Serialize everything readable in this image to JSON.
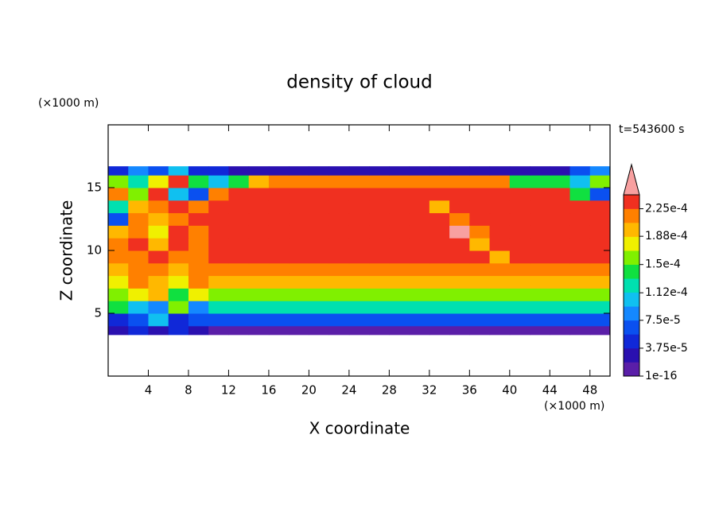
{
  "chart_data": {
    "type": "heatmap",
    "title": "density of cloud",
    "xlabel": "X coordinate",
    "ylabel": "Z coordinate",
    "xunit": "(×1000 m)",
    "yunit": "(×1000 m)",
    "annotation": "t=543600 s",
    "xlim": [
      0,
      50
    ],
    "ylim": [
      0,
      20
    ],
    "xticks": [
      4,
      8,
      12,
      16,
      20,
      24,
      28,
      32,
      36,
      40,
      44,
      48
    ],
    "yticks": [
      5,
      10,
      15
    ],
    "x_edges": [
      0,
      2,
      4,
      6,
      8,
      10,
      12,
      14,
      16,
      18,
      20,
      22,
      24,
      26,
      28,
      30,
      32,
      34,
      36,
      38,
      40,
      42,
      44,
      46,
      48,
      50
    ],
    "z_edges": [
      3.3,
      4,
      5,
      6,
      7,
      8,
      9,
      10,
      11,
      12,
      13,
      14,
      15,
      16,
      16.7
    ],
    "values": [
      [
        2.8e-05,
        4.7e-05,
        2.8e-05,
        4.7e-05,
        2.8e-05,
        9.4e-06,
        9.4e-06,
        9.4e-06,
        9.4e-06,
        9.4e-06,
        9.4e-06,
        9.4e-06,
        9.4e-06,
        9.4e-06,
        9.4e-06,
        9.4e-06,
        9.4e-06,
        9.4e-06,
        9.4e-06,
        9.4e-06,
        9.4e-06,
        9.4e-06,
        9.4e-06,
        9.4e-06,
        9.4e-06
      ],
      [
        4.7e-05,
        6.6e-05,
        0.000103,
        4.7e-05,
        6.6e-05,
        6.6e-05,
        6.6e-05,
        6.6e-05,
        6.6e-05,
        6.6e-05,
        6.6e-05,
        6.6e-05,
        6.6e-05,
        6.6e-05,
        6.6e-05,
        6.6e-05,
        6.6e-05,
        6.6e-05,
        6.6e-05,
        6.6e-05,
        6.6e-05,
        6.6e-05,
        6.6e-05,
        6.6e-05,
        6.6e-05
      ],
      [
        0.000141,
        0.000103,
        8.4e-05,
        0.00016,
        8.4e-05,
        0.000122,
        0.000122,
        0.000122,
        0.000122,
        0.000122,
        0.000122,
        0.000122,
        0.000122,
        0.000122,
        0.000122,
        0.000122,
        0.000122,
        0.000122,
        0.000122,
        0.000122,
        0.000122,
        0.000122,
        0.000122,
        0.000122,
        0.000122
      ],
      [
        0.00016,
        0.000178,
        0.000197,
        0.000141,
        0.000178,
        0.00016,
        0.00016,
        0.00016,
        0.00016,
        0.00016,
        0.00016,
        0.00016,
        0.00016,
        0.00016,
        0.00016,
        0.00016,
        0.00016,
        0.00016,
        0.00016,
        0.00016,
        0.00016,
        0.00016,
        0.00016,
        0.00016,
        0.00016
      ],
      [
        0.000178,
        0.000216,
        0.000197,
        0.000178,
        0.000216,
        0.000197,
        0.000197,
        0.000197,
        0.000197,
        0.000197,
        0.000197,
        0.000197,
        0.000197,
        0.000197,
        0.000197,
        0.000197,
        0.000197,
        0.000197,
        0.000197,
        0.000197,
        0.000197,
        0.000197,
        0.000197,
        0.000197,
        0.000197
      ],
      [
        0.000197,
        0.000216,
        0.000216,
        0.000197,
        0.000216,
        0.000216,
        0.000216,
        0.000216,
        0.000216,
        0.000216,
        0.000216,
        0.000216,
        0.000216,
        0.000216,
        0.000216,
        0.000216,
        0.000216,
        0.000216,
        0.000216,
        0.000216,
        0.000216,
        0.000216,
        0.000216,
        0.000216,
        0.000216
      ],
      [
        0.000216,
        0.000216,
        0.000234,
        0.000216,
        0.000216,
        0.000234,
        0.000234,
        0.000234,
        0.000234,
        0.000234,
        0.000234,
        0.000234,
        0.000234,
        0.000234,
        0.000234,
        0.000234,
        0.000234,
        0.000234,
        0.000234,
        0.000197,
        0.000234,
        0.000234,
        0.000234,
        0.000234,
        0.000234
      ],
      [
        0.000216,
        0.000234,
        0.000197,
        0.000234,
        0.000216,
        0.000234,
        0.000234,
        0.000234,
        0.000234,
        0.000234,
        0.000234,
        0.000234,
        0.000234,
        0.000234,
        0.000234,
        0.000234,
        0.000234,
        0.000234,
        0.000197,
        0.000234,
        0.000234,
        0.000234,
        0.000234,
        0.000234,
        0.000234
      ],
      [
        0.000197,
        0.000216,
        0.000178,
        0.000234,
        0.000216,
        0.000234,
        0.000234,
        0.000234,
        0.000234,
        0.000234,
        0.000234,
        0.000234,
        0.000234,
        0.000234,
        0.000234,
        0.000234,
        0.000234,
        0.00025,
        0.000216,
        0.000234,
        0.000234,
        0.000234,
        0.000234,
        0.000234,
        0.000234
      ],
      [
        6.6e-05,
        0.000216,
        0.000197,
        0.000216,
        0.000234,
        0.000234,
        0.000234,
        0.000234,
        0.000234,
        0.000234,
        0.000234,
        0.000234,
        0.000234,
        0.000234,
        0.000234,
        0.000234,
        0.000234,
        0.000216,
        0.000234,
        0.000234,
        0.000234,
        0.000234,
        0.000234,
        0.000234,
        0.000234
      ],
      [
        0.000122,
        0.000197,
        0.000216,
        0.000234,
        0.000216,
        0.000234,
        0.000234,
        0.000234,
        0.000234,
        0.000234,
        0.000234,
        0.000234,
        0.000234,
        0.000234,
        0.000234,
        0.000234,
        0.000197,
        0.000234,
        0.000234,
        0.000234,
        0.000234,
        0.000234,
        0.000234,
        0.000234,
        0.000234
      ],
      [
        0.000216,
        0.00016,
        0.000234,
        0.000103,
        6.6e-05,
        0.000216,
        0.000234,
        0.000234,
        0.000234,
        0.000234,
        0.000234,
        0.000234,
        0.000234,
        0.000234,
        0.000234,
        0.000234,
        0.000234,
        0.000234,
        0.000234,
        0.000234,
        0.000234,
        0.000234,
        0.000234,
        0.000141,
        6.6e-05
      ],
      [
        0.00016,
        0.000122,
        0.000178,
        0.000234,
        0.000141,
        0.000103,
        0.000141,
        0.000197,
        0.000216,
        0.000216,
        0.000216,
        0.000216,
        0.000216,
        0.000216,
        0.000216,
        0.000216,
        0.000216,
        0.000216,
        0.000216,
        0.000216,
        0.000141,
        0.000141,
        0.000141,
        0.000103,
        0.00016
      ],
      [
        4.7e-05,
        8.4e-05,
        6.6e-05,
        0.000103,
        4.7e-05,
        4.7e-05,
        2.8e-05,
        2.8e-05,
        2.8e-05,
        2.8e-05,
        2.8e-05,
        2.8e-05,
        2.8e-05,
        2.8e-05,
        2.8e-05,
        2.8e-05,
        2.8e-05,
        2.8e-05,
        2.8e-05,
        2.8e-05,
        2.8e-05,
        2.8e-05,
        2.8e-05,
        6.6e-05,
        8.4e-05
      ]
    ],
    "colorbar": {
      "levels": [
        1e-16,
        1.875e-05,
        3.75e-05,
        5.625e-05,
        7.5e-05,
        9.375e-05,
        0.0001125,
        0.00013125,
        0.00015,
        0.00016875,
        0.0001875,
        0.00020625,
        0.000225,
        0.00024375
      ],
      "colors": [
        "#5a1ea8",
        "#2a10b0",
        "#1028d8",
        "#0a50f0",
        "#1488ff",
        "#10c0f0",
        "#00e0b0",
        "#10e040",
        "#80f000",
        "#f0f000",
        "#ffb800",
        "#ff8000",
        "#f03020"
      ],
      "over_color": "#f8a0a0",
      "ticks": [
        1e-16,
        {
          "value": 3.75e-05,
          "label": "3.75e-5"
        },
        {
          "value": 7.5e-05,
          "label": "7.5e-5"
        },
        {
          "value": 0.000112,
          "label": "1.12e-4"
        },
        {
          "value": 0.00015,
          "label": "1.5e-4"
        },
        {
          "value": 0.000188,
          "label": "1.88e-4"
        },
        {
          "value": 0.000225,
          "label": "2.25e-4"
        }
      ]
    }
  }
}
